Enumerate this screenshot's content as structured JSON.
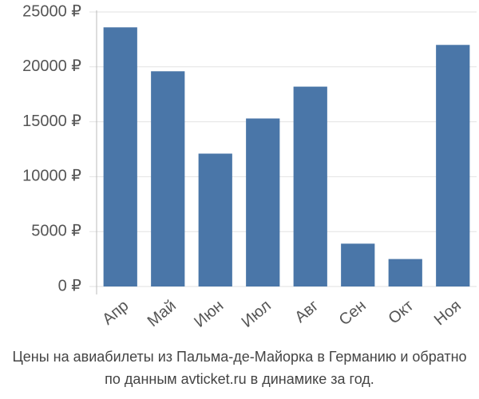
{
  "chart_data": {
    "type": "bar",
    "title": "Цены на авиабилеты из Пальма-де-Майорка в Германию и обратно",
    "subtitle": "по данным avticket.ru в динамике за год.",
    "categories": [
      "Апр",
      "Май",
      "Июн",
      "Июл",
      "Авг",
      "Сен",
      "Окт",
      "Ноя"
    ],
    "values": [
      23600,
      19600,
      12100,
      15300,
      18200,
      3900,
      2500,
      22000
    ],
    "color": "#4a76a8",
    "ylim": [
      0,
      25000
    ],
    "yticks": [
      {
        "value": 0,
        "label": "0 ₽"
      },
      {
        "value": 5000,
        "label": "5000 ₽"
      },
      {
        "value": 10000,
        "label": "10000 ₽"
      },
      {
        "value": 15000,
        "label": "15000 ₽"
      },
      {
        "value": 20000,
        "label": "20000 ₽"
      },
      {
        "value": 25000,
        "label": "25000 ₽"
      }
    ],
    "grid": true
  }
}
